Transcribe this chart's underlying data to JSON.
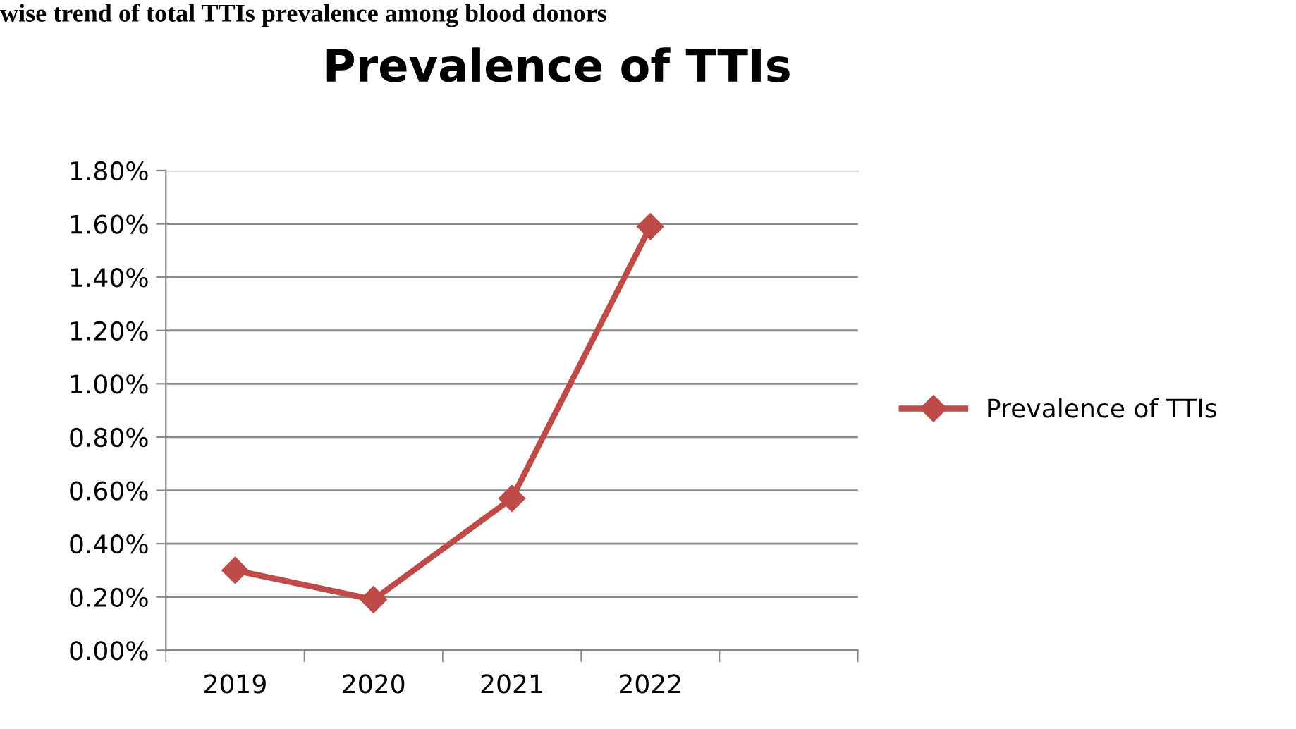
{
  "chart_data": {
    "type": "line",
    "title": "Prevalence of TTIs",
    "annotations": [
      "wise trend of total TTIs prevalence among blood donors"
    ],
    "categories": [
      "2019",
      "2020",
      "2021",
      "2022",
      null
    ],
    "series": [
      {
        "name": "Prevalence of TTIs",
        "color": "#be4b48",
        "values": [
          0.3,
          0.19,
          0.57,
          1.59,
          null
        ]
      }
    ],
    "ylim": [
      0,
      1.8
    ],
    "yticks": [
      {
        "value": 0,
        "label": "0.00%"
      },
      {
        "value": 0.2,
        "label": "0.20%"
      },
      {
        "value": 0.4,
        "label": "0.40%"
      },
      {
        "value": 0.6,
        "label": "0.60%"
      },
      {
        "value": 0.8,
        "label": "0.80%"
      },
      {
        "value": 1.0,
        "label": "1.00%"
      },
      {
        "value": 1.2,
        "label": "1.20%"
      },
      {
        "value": 1.4,
        "label": "1.40%"
      },
      {
        "value": 1.6,
        "label": "1.60%"
      },
      {
        "value": 1.8,
        "label": "1.80%"
      }
    ],
    "grid": "y",
    "legend": "right",
    "marker": "diamond",
    "line_style": "solid"
  }
}
